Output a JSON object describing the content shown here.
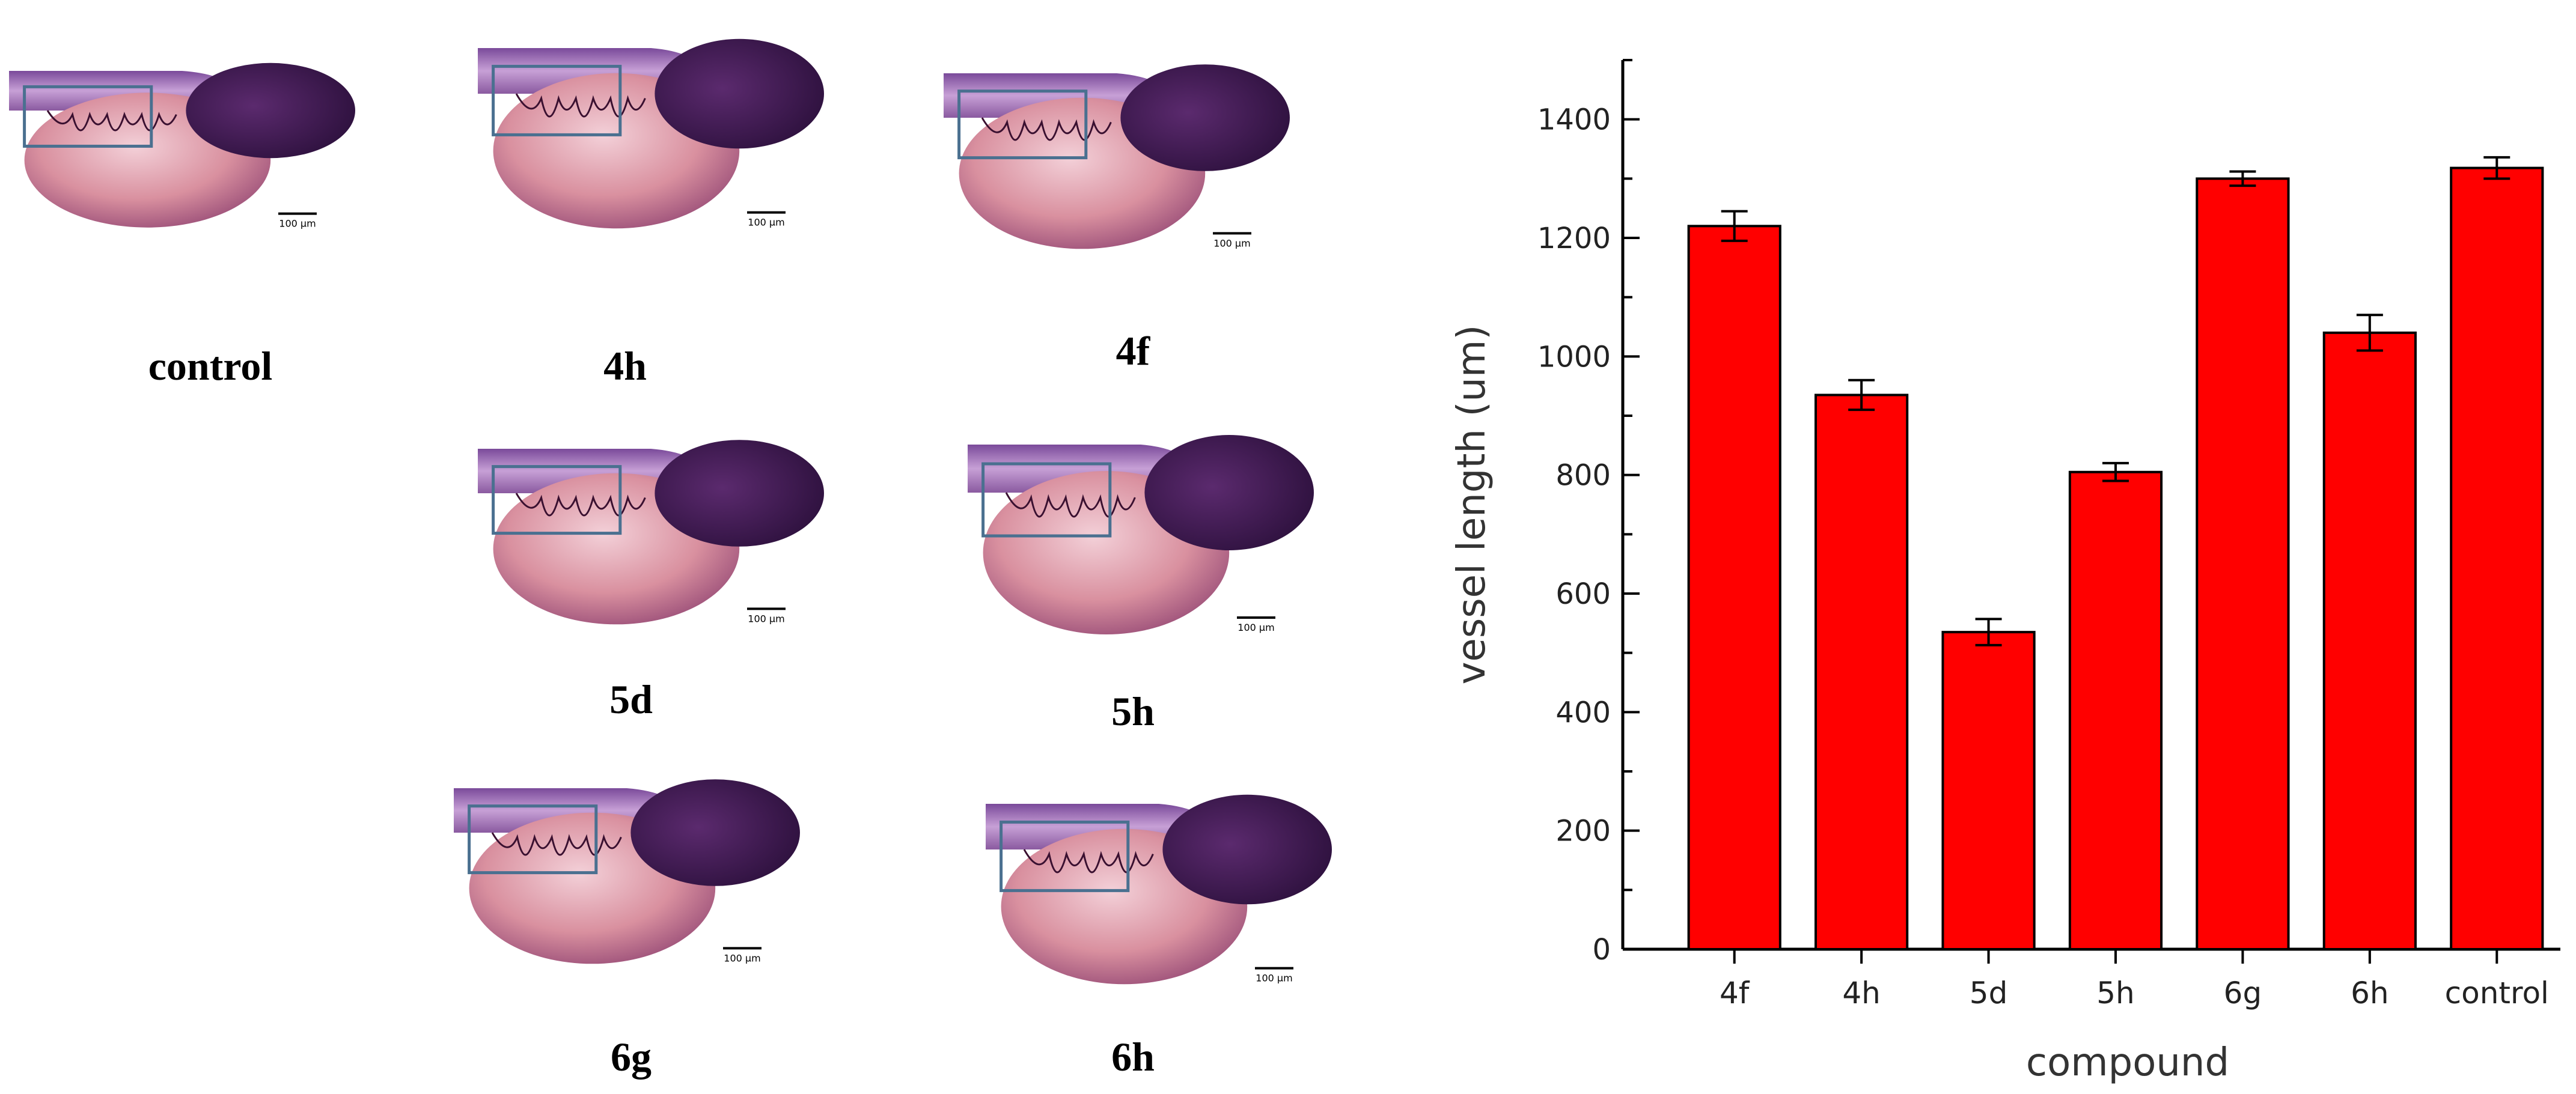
{
  "figure": {
    "panels": [
      {
        "id": "control",
        "label": "control"
      },
      {
        "id": "4h",
        "label": "4h"
      },
      {
        "id": "4f",
        "label": "4f"
      },
      {
        "id": "5d",
        "label": "5d"
      },
      {
        "id": "5h",
        "label": "5h"
      },
      {
        "id": "6g",
        "label": "6g"
      },
      {
        "id": "6h",
        "label": "6h"
      }
    ],
    "scale_bar_text": "100 µm",
    "colors": {
      "bar": "#ff0000",
      "roi_box": "#4a7090",
      "embryo_dark": "#2a0f3a",
      "yolk": "#d9909f"
    }
  },
  "chart_data": {
    "type": "bar",
    "categories": [
      "4f",
      "4h",
      "5d",
      "5h",
      "6g",
      "6h",
      "control"
    ],
    "values": [
      1220,
      935,
      535,
      805,
      1300,
      1040,
      1318
    ],
    "errors": [
      25,
      25,
      22,
      15,
      12,
      30,
      18
    ],
    "xlabel": "compound",
    "ylabel": "vessel length (um)",
    "ylim": [
      0,
      1500
    ],
    "yticks": [
      0,
      200,
      400,
      600,
      800,
      1000,
      1200,
      1400
    ],
    "grid": false,
    "bar_color": "#ff0000"
  }
}
